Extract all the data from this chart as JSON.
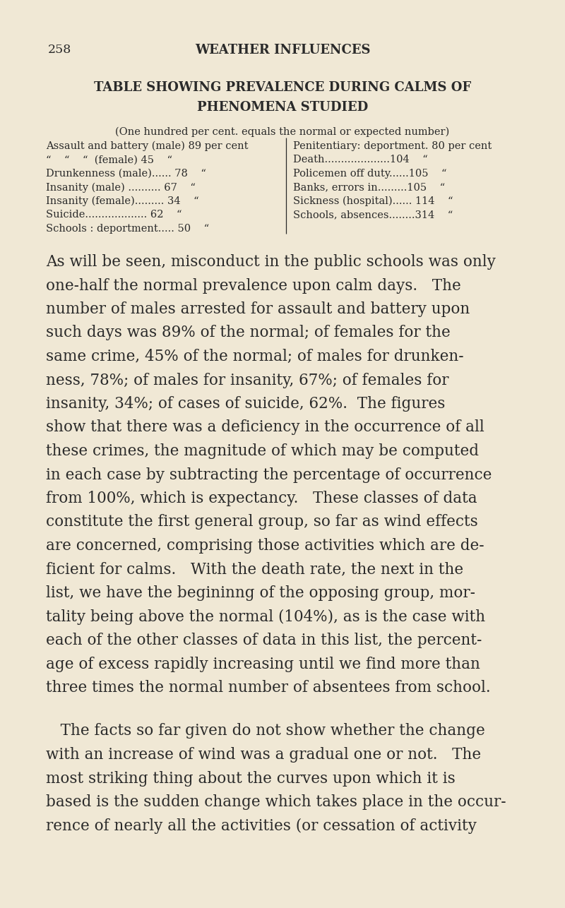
{
  "bg_color": "#f0e8d5",
  "text_color": "#2a2a2a",
  "page_number": "258",
  "page_header": "WEATHER INFLUENCES",
  "table_title_line1": "TABLE SHOWING PREVALENCE DURING CALMS OF",
  "table_title_line2": "PHENOMENA STUDIED",
  "table_subtitle": "(One hundred per cent. equals the normal or expected number)",
  "left_rows": [
    "Assault and battery (male) 89 per cent",
    "“    “    “  (female) 45    “",
    "Drunkenness (male)...... 78    “",
    "Insanity (male) .......... 67    “",
    "Insanity (female)......... 34    “",
    "Suicide................... 62    “",
    "Schools : deportment..... 50    “"
  ],
  "right_rows": [
    "Penitentiary: deportment. 80 per cent",
    "Death....................104    “",
    "Policemen off duty......105    “",
    "Banks, errors in.........105    “",
    "Sickness (hospital)...... 114    “",
    "Schools, absences........314    “"
  ],
  "para1_lines": [
    "As will be seen, misconduct in the public schools was only",
    "one-half the normal prevalence upon calm days.   The",
    "number of males arrested for assault and battery upon",
    "such days was 89% of the normal; of females for the",
    "same crime, 45% of the normal; of males for drunken-",
    "ness, 78%; of males for insanity, 67%; of females for",
    "insanity, 34%; of cases of suicide, 62%.  The figures",
    "show that there was a deficiency in the occurrence of all",
    "these crimes, the magnitude of which may be computed",
    "in each case by subtracting the percentage of occurrence",
    "from 100%, which is expectancy.   These classes of data",
    "constitute the first general group, so far as wind effects",
    "are concerned, comprising those activities which are de-",
    "ficient for calms.   With the death rate, the next in the",
    "list, we have the begininng of the opposing group, mor-",
    "tality being above the normal (104%), as is the case with",
    "each of the other classes of data in this list, the percent-",
    "age of excess rapidly increasing until we find more than",
    "three times the normal number of absentees from school."
  ],
  "para2_lines": [
    "   The facts so far given do not show whether the change",
    "with an increase of wind was a gradual one or not.   The",
    "most striking thing about the curves upon which it is",
    "based is the sudden change which takes place in the occur-",
    "rence of nearly all the activities (or cessation of activity"
  ]
}
